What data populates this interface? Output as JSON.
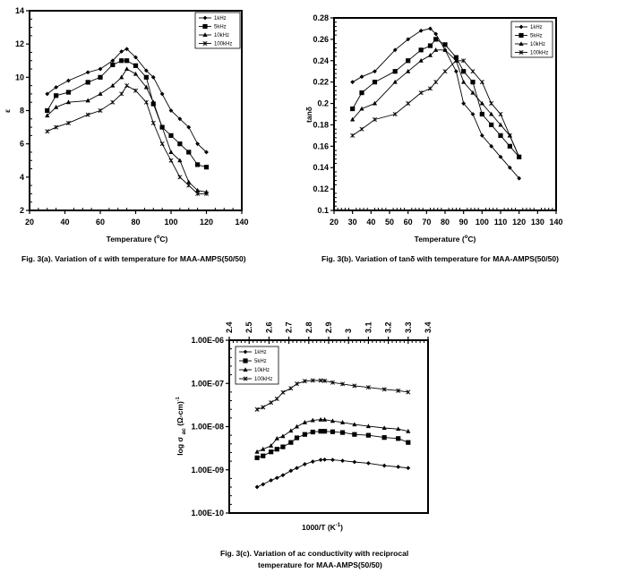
{
  "chart_data": [
    {
      "id": "a",
      "type": "line",
      "caption": "Fig. 3(a). Variation of ε with temperature for MAA-AMPS(50/50)",
      "xlabel": "Temperature (°C)",
      "xlabel_main": "Temperature (",
      "xlabel_sup": "o",
      "xlabel_end": "C)",
      "ylabel": "ε",
      "xlim": [
        20,
        140
      ],
      "ylim": [
        2,
        14
      ],
      "xticks": [
        20,
        40,
        60,
        80,
        100,
        120,
        140
      ],
      "yticks": [
        2,
        4,
        6,
        8,
        10,
        12,
        14
      ],
      "legend_position": "top-right",
      "series": [
        {
          "name": "1kHz",
          "marker": "diamond",
          "x": [
            30,
            35,
            42,
            53,
            60,
            67,
            72,
            75,
            80,
            86,
            90,
            95,
            100,
            105,
            110,
            115,
            120
          ],
          "y": [
            9.0,
            9.4,
            9.8,
            10.3,
            10.5,
            11.0,
            11.55,
            11.7,
            11.2,
            10.4,
            10.0,
            9.0,
            8.0,
            7.5,
            7.0,
            6.0,
            5.5
          ]
        },
        {
          "name": "5kHz",
          "marker": "square",
          "x": [
            30,
            35,
            42,
            53,
            60,
            67,
            72,
            75,
            80,
            86,
            90,
            95,
            100,
            105,
            110,
            115,
            120
          ],
          "y": [
            8.0,
            8.9,
            9.1,
            9.7,
            10.0,
            10.75,
            11.0,
            11.0,
            10.7,
            10.0,
            8.4,
            7.0,
            6.5,
            6.0,
            5.5,
            4.75,
            4.6
          ]
        },
        {
          "name": "10kHz",
          "marker": "triangle",
          "x": [
            30,
            35,
            42,
            53,
            60,
            67,
            72,
            75,
            80,
            86,
            90,
            95,
            100,
            105,
            110,
            115,
            120
          ],
          "y": [
            7.7,
            8.2,
            8.5,
            8.6,
            9.0,
            9.5,
            10.0,
            10.5,
            10.2,
            9.4,
            8.5,
            7.0,
            5.5,
            5.0,
            3.7,
            3.2,
            3.1
          ]
        },
        {
          "name": "100kHz",
          "marker": "x",
          "x": [
            30,
            35,
            42,
            53,
            60,
            67,
            72,
            75,
            80,
            86,
            90,
            95,
            100,
            105,
            110,
            115,
            120
          ],
          "y": [
            6.75,
            7.0,
            7.25,
            7.75,
            8.0,
            8.5,
            9.0,
            9.5,
            9.2,
            8.5,
            7.25,
            6.0,
            5.0,
            4.0,
            3.5,
            3.0,
            3.0
          ]
        }
      ]
    },
    {
      "id": "b",
      "type": "line",
      "caption": "Fig. 3(b). Variation of tanδ with temperature for MAA-AMPS(50/50)",
      "xlabel": "Temperature (°C)",
      "xlabel_main": "Temperature (",
      "xlabel_sup": "o",
      "xlabel_end": "C)",
      "ylabel": "tanδ",
      "xlim": [
        20,
        140
      ],
      "ylim": [
        0.1,
        0.28
      ],
      "xticks": [
        20,
        30,
        40,
        50,
        60,
        70,
        80,
        90,
        100,
        110,
        120,
        130,
        140
      ],
      "yticks": [
        0.1,
        0.12,
        0.14,
        0.16,
        0.18,
        0.2,
        0.22,
        0.24,
        0.26,
        0.28
      ],
      "ytick_labels": [
        "0.1",
        "0.12",
        "0.14",
        "0.16",
        "0.18",
        "0.2",
        "0.22",
        "0.24",
        "0.26",
        "0.28"
      ],
      "legend_position": "top-right",
      "series": [
        {
          "name": "1kHz",
          "marker": "diamond",
          "x": [
            30,
            35,
            42,
            53,
            60,
            67,
            72,
            75,
            80,
            86,
            90,
            95,
            100,
            105,
            110,
            115,
            120
          ],
          "y": [
            0.22,
            0.225,
            0.23,
            0.25,
            0.26,
            0.268,
            0.27,
            0.265,
            0.25,
            0.23,
            0.2,
            0.19,
            0.17,
            0.16,
            0.15,
            0.14,
            0.13
          ]
        },
        {
          "name": "5kHz",
          "marker": "square",
          "x": [
            30,
            35,
            42,
            53,
            60,
            67,
            72,
            75,
            80,
            86,
            90,
            95,
            100,
            105,
            110,
            115,
            120
          ],
          "y": [
            0.195,
            0.21,
            0.22,
            0.23,
            0.24,
            0.25,
            0.254,
            0.26,
            0.255,
            0.243,
            0.23,
            0.22,
            0.19,
            0.18,
            0.17,
            0.16,
            0.15
          ]
        },
        {
          "name": "10kHz",
          "marker": "triangle",
          "x": [
            30,
            35,
            42,
            53,
            60,
            67,
            72,
            75,
            80,
            86,
            90,
            95,
            100,
            105,
            110,
            115,
            120
          ],
          "y": [
            0.185,
            0.195,
            0.2,
            0.22,
            0.23,
            0.24,
            0.245,
            0.25,
            0.25,
            0.24,
            0.22,
            0.21,
            0.2,
            0.19,
            0.18,
            0.17,
            0.15
          ]
        },
        {
          "name": "100kHz",
          "marker": "x",
          "x": [
            30,
            35,
            42,
            53,
            60,
            67,
            72,
            75,
            80,
            86,
            90,
            95,
            100,
            105,
            110,
            115,
            120
          ],
          "y": [
            0.17,
            0.176,
            0.185,
            0.19,
            0.2,
            0.21,
            0.214,
            0.22,
            0.23,
            0.24,
            0.24,
            0.23,
            0.22,
            0.2,
            0.19,
            0.17,
            0.15
          ]
        }
      ]
    },
    {
      "id": "c",
      "type": "line",
      "yscale": "log",
      "caption_line1": "Fig. 3(c).  Variation of ac conductivity with reciprocal",
      "caption_line2": "temperature for MAA-AMPS(50/50)",
      "xlabel": "1000/T (K⁻¹)",
      "xlabel_main": "1000/T (K",
      "xlabel_sup": "-1",
      "xlabel_end": ")",
      "ylabel": "log σ ac (Ω-cm)⁻¹",
      "ylabel_main": "log σ",
      "ylabel_sub": "ac",
      "ylabel_end": "(Ω-cm)",
      "ylabel_sup": "-1",
      "xaxis_position": "top",
      "xlim": [
        2.4,
        3.4
      ],
      "ylim": [
        1e-10,
        1e-06
      ],
      "xticks": [
        2.4,
        2.5,
        2.6,
        2.7,
        2.8,
        2.9,
        3.0,
        3.1,
        3.2,
        3.3,
        3.4
      ],
      "xtick_labels": [
        "2.4",
        "2.5",
        "2.6",
        "2.7",
        "2.8",
        "2.9",
        "3",
        "3.1",
        "3.2",
        "3.3",
        "3.4"
      ],
      "yticks": [
        1e-10,
        1e-09,
        1e-08,
        1e-07,
        1e-06
      ],
      "ytick_labels": [
        "1.00E-10",
        "1.00E-09",
        "1.00E-08",
        "1.00E-07",
        "1.00E-06"
      ],
      "legend_position": "top-left",
      "series": [
        {
          "name": "1kHz",
          "marker": "diamond",
          "x": [
            2.54,
            2.57,
            2.61,
            2.64,
            2.67,
            2.71,
            2.74,
            2.78,
            2.82,
            2.86,
            2.88,
            2.92,
            2.97,
            3.03,
            3.1,
            3.18,
            3.25,
            3.3
          ],
          "y": [
            4e-10,
            4.6e-10,
            5.7e-10,
            6.5e-10,
            7.5e-10,
            9.5e-10,
            1.1e-09,
            1.35e-09,
            1.55e-09,
            1.7e-09,
            1.72e-09,
            1.7e-09,
            1.62e-09,
            1.52e-09,
            1.42e-09,
            1.25e-09,
            1.17e-09,
            1.1e-09
          ]
        },
        {
          "name": "5kHz",
          "marker": "square",
          "x": [
            2.54,
            2.57,
            2.61,
            2.64,
            2.67,
            2.71,
            2.74,
            2.78,
            2.82,
            2.86,
            2.88,
            2.92,
            2.97,
            3.03,
            3.1,
            3.18,
            3.25,
            3.3
          ],
          "y": [
            1.9e-09,
            2.1e-09,
            2.6e-09,
            3e-09,
            3.4e-09,
            4.3e-09,
            5.5e-09,
            6.6e-09,
            7.5e-09,
            7.8e-09,
            7.8e-09,
            7.6e-09,
            7.3e-09,
            6.6e-09,
            6.3e-09,
            5.6e-09,
            5.3e-09,
            4.3e-09
          ]
        },
        {
          "name": "10kHz",
          "marker": "triangle",
          "x": [
            2.54,
            2.57,
            2.61,
            2.64,
            2.67,
            2.71,
            2.74,
            2.78,
            2.82,
            2.86,
            2.88,
            2.92,
            2.97,
            3.03,
            3.1,
            3.18,
            3.25,
            3.3
          ],
          "y": [
            2.6e-09,
            3e-09,
            3.6e-09,
            5.3e-09,
            6e-09,
            8e-09,
            1e-08,
            1.25e-08,
            1.4e-08,
            1.45e-08,
            1.45e-08,
            1.35e-08,
            1.25e-08,
            1.12e-08,
            1.02e-08,
            9.3e-09,
            8.8e-09,
            7.8e-09
          ]
        },
        {
          "name": "100kHz",
          "marker": "x",
          "x": [
            2.54,
            2.57,
            2.61,
            2.64,
            2.67,
            2.71,
            2.74,
            2.78,
            2.82,
            2.86,
            2.88,
            2.92,
            2.97,
            3.03,
            3.1,
            3.18,
            3.25,
            3.3
          ],
          "y": [
            2.5e-08,
            2.8e-08,
            3.6e-08,
            4.4e-08,
            6.2e-08,
            7.7e-08,
            9.8e-08,
            1.13e-07,
            1.17e-07,
            1.17e-07,
            1.15e-07,
            1.05e-07,
            9.7e-08,
            8.8e-08,
            8.1e-08,
            7.3e-08,
            6.8e-08,
            6.3e-08
          ]
        }
      ]
    }
  ]
}
